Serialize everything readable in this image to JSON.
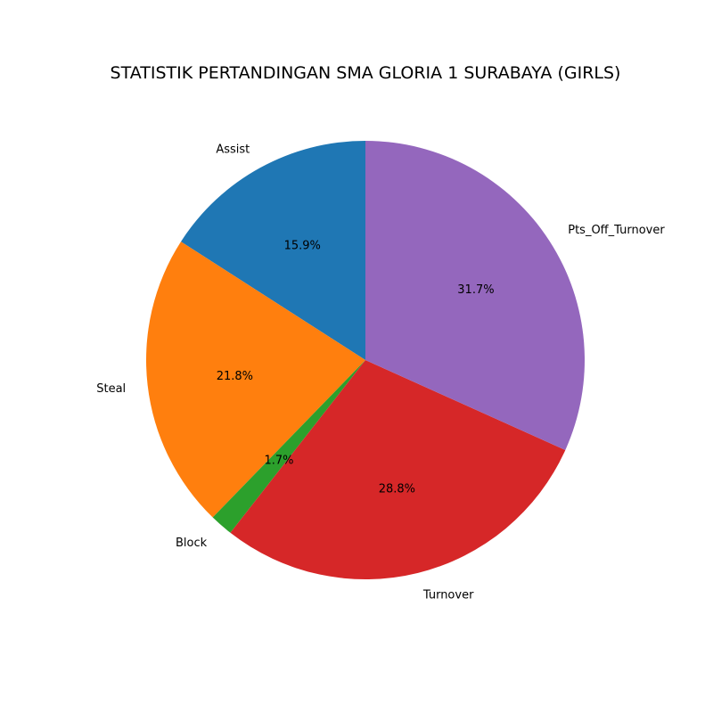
{
  "chart_data": {
    "type": "pie",
    "title": "STATISTIK PERTANDINGAN SMA GLORIA 1 SURABAYA (GIRLS)",
    "categories": [
      "Assist",
      "Steal",
      "Block",
      "Turnover",
      "Pts_Off_Turnover"
    ],
    "values": [
      15.9,
      21.8,
      1.7,
      28.8,
      31.7
    ],
    "percent_labels": [
      "15.9%",
      "21.8%",
      "1.7%",
      "28.8%",
      "31.7%"
    ],
    "colors": [
      "#1f77b4",
      "#ff7f0e",
      "#2ca02c",
      "#d62728",
      "#9467bd"
    ],
    "start_angle_deg": 90,
    "direction": "counterclockwise",
    "legend": "none"
  }
}
